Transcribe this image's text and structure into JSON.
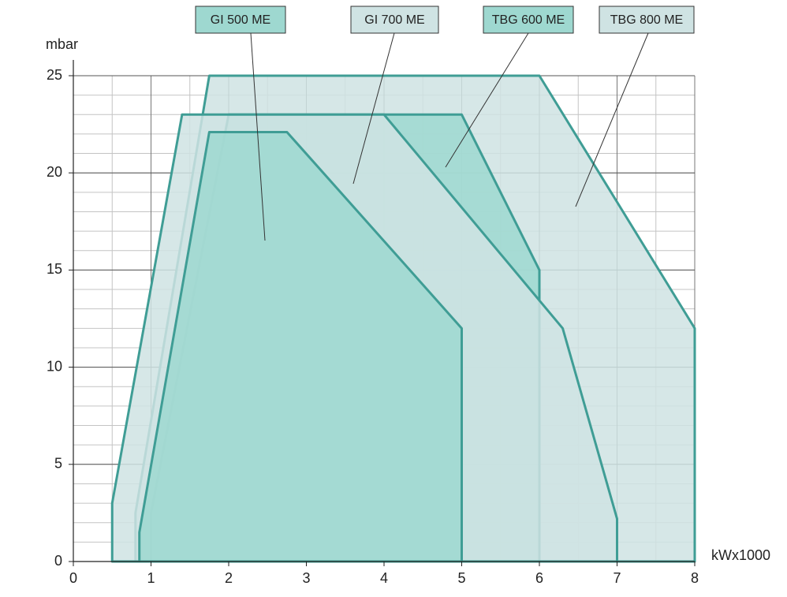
{
  "chart_data": {
    "type": "area",
    "x_label": "kWx1000",
    "y_label": "mbar",
    "xlim": [
      0,
      8
    ],
    "ylim": [
      0,
      25
    ],
    "xticks": [
      0,
      1,
      2,
      3,
      4,
      5,
      6,
      7,
      8
    ],
    "yticks": [
      0,
      5,
      10,
      15,
      20,
      25
    ],
    "grid": true,
    "minor_grid": {
      "x": 0.5,
      "y": 1
    },
    "series": [
      {
        "name": "GI 500 ME",
        "color": "#9ed8d0",
        "line_color": "#3f9d95",
        "x": [
          0.85,
          0.85,
          1.75,
          2.75,
          5,
          5
        ],
        "values": [
          0,
          1.5,
          22.1,
          22.1,
          12,
          0
        ]
      },
      {
        "name": "GI 700 ME",
        "color": "#cfe3e3",
        "line_color": "#3f9d95",
        "x": [
          0.5,
          0.5,
          1.4,
          4,
          6.3,
          7,
          7
        ],
        "values": [
          0,
          3,
          23,
          23,
          12,
          2.2,
          0
        ]
      },
      {
        "name": "TBG 600 ME",
        "color": "#9ed8d0",
        "line_color": "#3f9d95",
        "x": [
          1,
          1,
          2,
          5,
          6,
          6
        ],
        "values": [
          0,
          2.5,
          23,
          23,
          15,
          0
        ]
      },
      {
        "name": "TBG 800 ME",
        "color": "#cfe3e3",
        "line_color": "#3f9d95",
        "x": [
          0.8,
          0.8,
          1.75,
          6,
          8,
          8
        ],
        "values": [
          0,
          2.5,
          25,
          25,
          12,
          0
        ]
      }
    ]
  }
}
